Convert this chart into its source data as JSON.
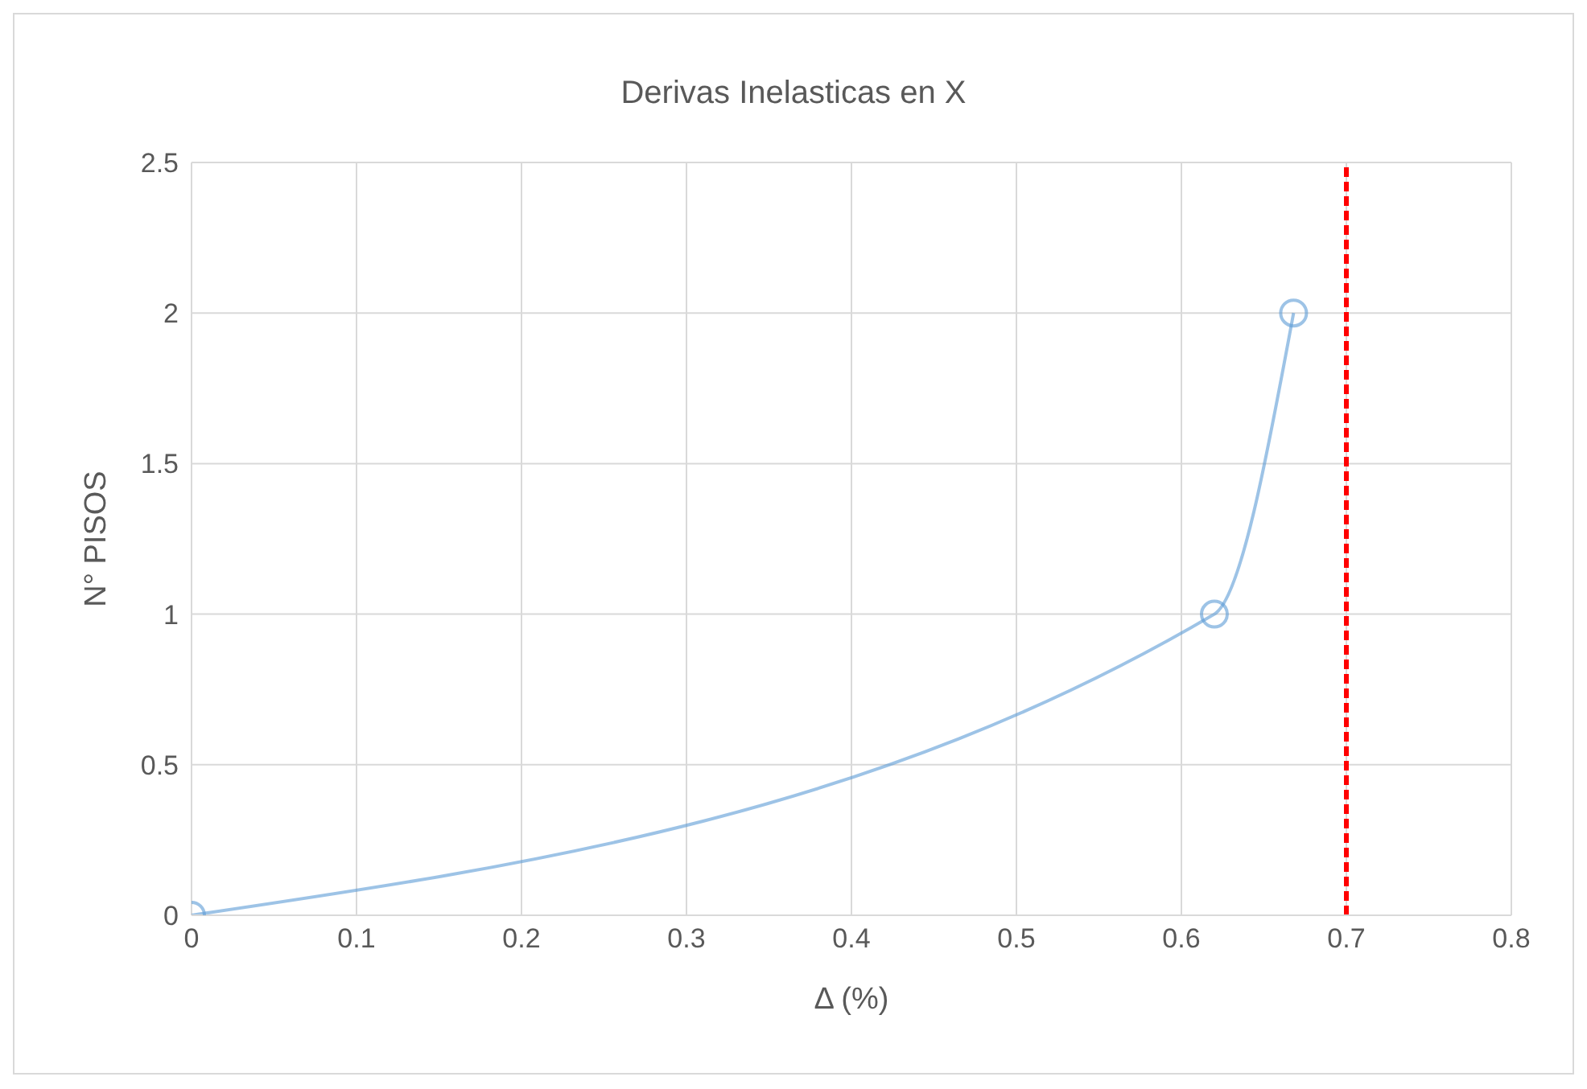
{
  "chart_data": {
    "type": "line",
    "title": "Derivas Inelasticas en X",
    "xlabel": "Δ (%)",
    "ylabel": "N° PISOS",
    "x": [
      0,
      0.62,
      0.668
    ],
    "series": [
      {
        "color": "#5b9bd5",
        "values": [
          0,
          1,
          2
        ]
      }
    ],
    "xlim": [
      0,
      0.8
    ],
    "xticks": [
      0,
      0.1,
      0.2,
      0.3,
      0.4,
      0.5,
      0.6,
      0.7,
      0.8
    ],
    "ylim": [
      0,
      2.5
    ],
    "yticks": [
      0,
      0.5,
      1,
      1.5,
      2,
      2.5
    ],
    "ref_lines": [
      {
        "axis": "x",
        "value": 0.7,
        "color": "#ff0000",
        "line_style": "dashed"
      }
    ],
    "grid": true,
    "legend": false,
    "marker": "circle",
    "line_style": "solid"
  }
}
